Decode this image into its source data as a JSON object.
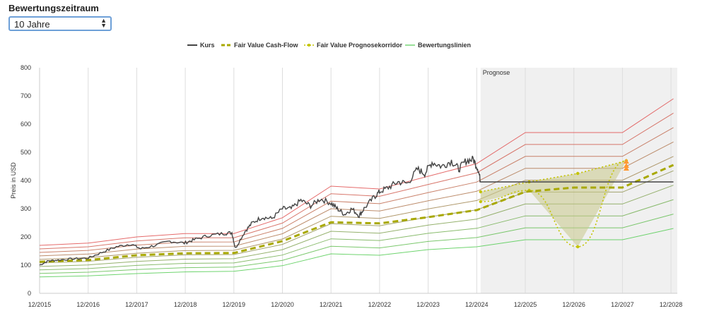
{
  "controls": {
    "period_label": "Bewertungszeitraum",
    "period_value": "10 Jahre"
  },
  "chart_data": {
    "type": "line",
    "title": "",
    "xlabel": "",
    "ylabel": "Preis in USD",
    "ylim": [
      0,
      800
    ],
    "yticks": [
      0,
      100,
      200,
      300,
      400,
      500,
      600,
      700,
      800
    ],
    "xticks": [
      "12/2015",
      "12/2016",
      "12/2017",
      "12/2018",
      "12/2019",
      "12/2020",
      "12/2021",
      "12/2022",
      "12/2023",
      "12/2024",
      "12/2025",
      "12/2026",
      "12/2027",
      "12/2028"
    ],
    "xlim": [
      2015.92,
      2029.05
    ],
    "grid": "vertical",
    "legend_position": "top-center",
    "forecast_region": {
      "label": "Prognose",
      "start": 2025.0,
      "end": 2029.05
    },
    "legend": [
      "Kurs",
      "Fair Value Cash-Flow",
      "Fair Value Prognosekorridor",
      "Bewertungslinien"
    ],
    "colors": {
      "kurs": "#444444",
      "fair_value": "#a8a800",
      "corridor": "#c3c300",
      "corridor_fill": "#c8c88a",
      "band_high": "#e05050",
      "band_low": "#55cc55",
      "forecast_bg": "#f0f0f0",
      "arrow": "#ff9933",
      "select_border": "#6ea0d8"
    },
    "series": [
      {
        "name": "Kurs",
        "x": [
          2015.92,
          2016.1,
          2016.3,
          2016.6,
          2016.92,
          2017.2,
          2017.5,
          2017.8,
          2018.0,
          2018.3,
          2018.6,
          2018.9,
          2019.1,
          2019.4,
          2019.7,
          2019.88,
          2019.95,
          2020.15,
          2020.3,
          2020.5,
          2020.7,
          2020.92,
          2021.1,
          2021.3,
          2021.5,
          2021.7,
          2021.92,
          2022.05,
          2022.2,
          2022.35,
          2022.5,
          2022.6,
          2022.8,
          2022.92,
          2023.1,
          2023.3,
          2023.5,
          2023.7,
          2023.85,
          2024.0,
          2024.2,
          2024.4,
          2024.55,
          2024.7,
          2024.85,
          2024.95,
          2025.0,
          2026.0,
          2027.0,
          2028.0,
          2028.97
        ],
        "y": [
          100,
          115,
          118,
          122,
          125,
          145,
          165,
          175,
          158,
          170,
          185,
          178,
          190,
          205,
          212,
          215,
          160,
          220,
          250,
          270,
          265,
          300,
          300,
          330,
          310,
          335,
          320,
          300,
          280,
          300,
          275,
          300,
          340,
          360,
          375,
          395,
          390,
          440,
          425,
          465,
          450,
          470,
          440,
          470,
          475,
          440,
          395,
          395,
          395,
          395,
          395
        ]
      },
      {
        "name": "Fair Value Cash-Flow",
        "x": [
          2015.92,
          2016.92,
          2017.92,
          2018.92,
          2019.92,
          2020.92,
          2021.92,
          2022.92,
          2023.92,
          2024.92,
          2025.92,
          2026.92,
          2027.92,
          2028.97
        ],
        "y": [
          112,
          118,
          135,
          142,
          143,
          185,
          252,
          248,
          270,
          295,
          360,
          375,
          375,
          455
        ]
      }
    ],
    "corridor": {
      "x": [
        2025.0,
        2026.0,
        2027.0,
        2028.0
      ],
      "upper": [
        360,
        395,
        425,
        470
      ],
      "lower": [
        325,
        365,
        165,
        470
      ],
      "arrows_at": 2028.0,
      "arrow_values": [
        470,
        455,
        445
      ]
    },
    "valuation_lines": {
      "x": [
        2015.92,
        2016.92,
        2017.92,
        2018.92,
        2019.92,
        2020.92,
        2021.92,
        2022.92,
        2023.92,
        2024.92,
        2025.92,
        2026.92,
        2027.92,
        2028.97
      ],
      "high": [
        170,
        178,
        200,
        212,
        212,
        268,
        380,
        370,
        415,
        460,
        570,
        570,
        570,
        690
      ],
      "low": [
        58,
        62,
        70,
        76,
        78,
        98,
        140,
        135,
        155,
        165,
        190,
        190,
        190,
        230
      ],
      "count": 10
    }
  }
}
